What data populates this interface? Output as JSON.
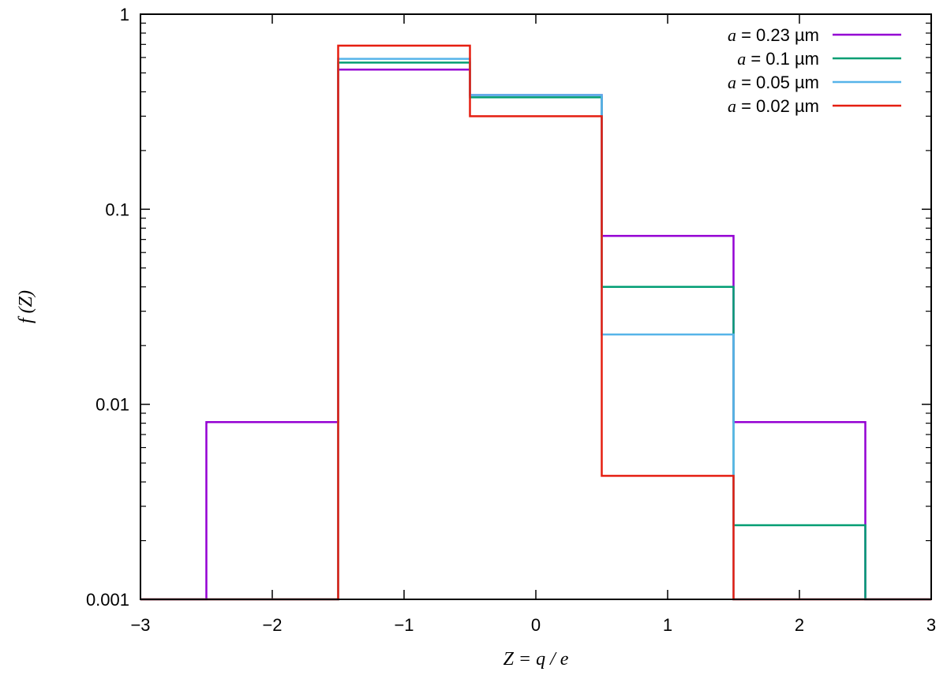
{
  "chart_data": {
    "type": "line",
    "style": "step-histogram",
    "title": "",
    "xlabel": "Z = q / e",
    "ylabel": "f (Z)",
    "xlim": [
      -3,
      3
    ],
    "ylim": [
      0.001,
      1
    ],
    "yscale": "log",
    "grid": false,
    "legend_position": "top-right",
    "x_ticks": [
      -3,
      -2,
      -1,
      0,
      1,
      2,
      3
    ],
    "x_tick_labels": [
      "−3",
      "−2",
      "−1",
      "0",
      "1",
      "2",
      "3"
    ],
    "y_ticks": [
      0.001,
      0.01,
      0.1,
      1
    ],
    "y_tick_labels": [
      "0.001",
      "0.01",
      "0.1",
      "1"
    ],
    "bin_edges": [
      -3,
      -2.5,
      -1.5,
      -0.5,
      0.5,
      1.5,
      2.5,
      3
    ],
    "series": [
      {
        "name": "a = 0.23 µm",
        "legend_var": "a",
        "legend_rest": " = 0.23 µm",
        "color": "#9400d3",
        "values": [
          0.001,
          0.0081,
          0.52,
          0.385,
          0.073,
          0.0081,
          0.001
        ]
      },
      {
        "name": "a = 0.1 µm",
        "legend_var": "a",
        "legend_rest": " = 0.1 µm",
        "color": "#009e73",
        "values": [
          0.001,
          0.001,
          0.565,
          0.375,
          0.04,
          0.0024,
          0.001
        ]
      },
      {
        "name": "a = 0.05 µm",
        "legend_var": "a",
        "legend_rest": " = 0.05 µm",
        "color": "#56b4e9",
        "values": [
          0.001,
          0.001,
          0.59,
          0.385,
          0.0228,
          0.001,
          0.001
        ]
      },
      {
        "name": "a = 0.02 µm",
        "legend_var": "a",
        "legend_rest": " = 0.02 µm",
        "color": "#e51e10",
        "values": [
          0.001,
          0.001,
          0.69,
          0.3,
          0.0043,
          0.001,
          0.001
        ]
      }
    ]
  }
}
